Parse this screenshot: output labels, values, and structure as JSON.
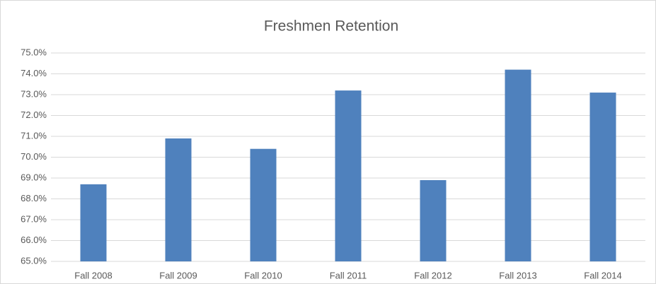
{
  "chart_data": {
    "type": "bar",
    "title": "Freshmen Retention",
    "categories": [
      "Fall 2008",
      "Fall 2009",
      "Fall 2010",
      "Fall 2011",
      "Fall 2012",
      "Fall 2013",
      "Fall 2014"
    ],
    "values": [
      68.7,
      70.9,
      70.4,
      73.2,
      68.9,
      74.2,
      73.1
    ],
    "color": "#4f81bd",
    "ylim": [
      65,
      75
    ],
    "yticks": [
      {
        "value": 65,
        "label": "65.0%"
      },
      {
        "value": 66,
        "label": "66.0%"
      },
      {
        "value": 67,
        "label": "67.0%"
      },
      {
        "value": 68,
        "label": "68.0%"
      },
      {
        "value": 69,
        "label": "69.0%"
      },
      {
        "value": 70,
        "label": "70.0%"
      },
      {
        "value": 71,
        "label": "71.0%"
      },
      {
        "value": 72,
        "label": "72.0%"
      },
      {
        "value": 73,
        "label": "73.0%"
      },
      {
        "value": 74,
        "label": "74.0%"
      },
      {
        "value": 75,
        "label": "75.0%"
      }
    ],
    "grid": true
  }
}
